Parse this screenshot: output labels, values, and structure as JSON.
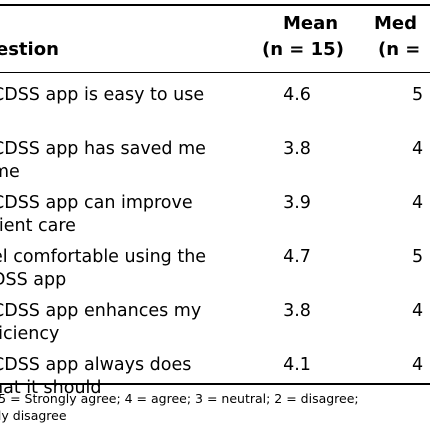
{
  "table": {
    "headers": {
      "question": "estion",
      "mean_line1": "Mean",
      "mean_line2": "(n = 15)",
      "median_line1": "Med",
      "median_line2": "(n ="
    },
    "rows": [
      {
        "question_lines": [
          "CDSS app is easy to use",
          ""
        ],
        "mean": "4.6",
        "median": "5"
      },
      {
        "question_lines": [
          "CDSS app has saved me",
          "me"
        ],
        "mean": "3.8",
        "median": "4"
      },
      {
        "question_lines": [
          "CDSS app can improve",
          "tient care"
        ],
        "mean": "3.9",
        "median": "4"
      },
      {
        "question_lines": [
          "el comfortable using the",
          "DSS app"
        ],
        "mean": "4.7",
        "median": "5"
      },
      {
        "question_lines": [
          "CDSS app enhances my",
          "ficiency"
        ],
        "mean": "3.8",
        "median": "4"
      },
      {
        "question_lines": [
          "CDSS app always does",
          "hat it should"
        ],
        "mean": "4.1",
        "median": "4"
      }
    ],
    "footnote_lines": [
      ": 5 = Strongly agree; 4 = agree; 3 = neutral; 2 = disagree;",
      "gly disagree"
    ]
  }
}
